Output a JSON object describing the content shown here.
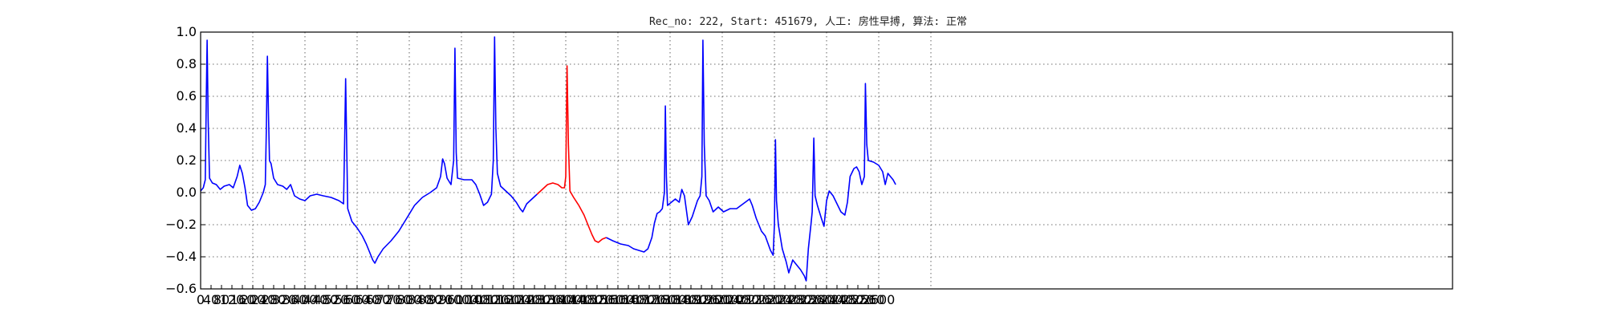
{
  "chart_data": {
    "type": "line",
    "title": "Rec_no: 222, Start: 451679, 人工: 房性早搏, 算法: 正常",
    "xlabel": "",
    "ylabel": "",
    "xlim": [
      0,
      2900
    ],
    "ylim": [
      -0.6,
      1.0
    ],
    "grid": true,
    "legend": "none",
    "xtick_labels": [
      "0",
      "40",
      "80",
      "120",
      "160",
      "200",
      "240",
      "280",
      "320",
      "360",
      "400",
      "440",
      "480",
      "520",
      "560",
      "600",
      "640",
      "680",
      "720",
      "760",
      "800",
      "840",
      "880",
      "920",
      "960",
      "1000",
      "1040",
      "1080",
      "1120",
      "1160",
      "1200",
      "1240",
      "1280",
      "1320",
      "1360",
      "1400",
      "1440",
      "1480",
      "1520",
      "1560",
      "1600",
      "1640",
      "1680",
      "1720",
      "1760",
      "1800",
      "1840",
      "1880",
      "1920",
      "1960",
      "2000",
      "2040",
      "2080",
      "2120",
      "2160",
      "2200",
      "2240",
      "2280",
      "2320",
      "2360",
      "2400",
      "2440",
      "2480",
      "2520",
      "2560",
      "2600"
    ],
    "ytick_labels": [
      "1.0",
      "0.8",
      "0.6",
      "0.4",
      "0.2",
      "0.0",
      "−0.2",
      "−0.4",
      "−0.6"
    ],
    "yticks": [
      1.0,
      0.8,
      0.6,
      0.4,
      0.2,
      0.0,
      -0.2,
      -0.4,
      -0.6
    ],
    "series": [
      {
        "color": "#0000ff",
        "segment": "before",
        "points": [
          [
            0,
            0.01
          ],
          [
            10,
            0.03
          ],
          [
            18,
            0.08
          ],
          [
            22,
            0.6
          ],
          [
            25,
            0.95
          ],
          [
            29,
            0.45
          ],
          [
            34,
            0.09
          ],
          [
            45,
            0.06
          ],
          [
            60,
            0.05
          ],
          [
            75,
            0.02
          ],
          [
            90,
            0.04
          ],
          [
            110,
            0.05
          ],
          [
            125,
            0.03
          ],
          [
            140,
            0.1
          ],
          [
            150,
            0.17
          ],
          [
            160,
            0.12
          ],
          [
            170,
            0.03
          ],
          [
            180,
            -0.08
          ],
          [
            195,
            -0.11
          ],
          [
            210,
            -0.1
          ],
          [
            225,
            -0.06
          ],
          [
            240,
            0.0
          ],
          [
            248,
            0.05
          ],
          [
            252,
            0.4
          ],
          [
            256,
            0.85
          ],
          [
            260,
            0.5
          ],
          [
            264,
            0.2
          ],
          [
            270,
            0.18
          ],
          [
            280,
            0.09
          ],
          [
            295,
            0.05
          ],
          [
            315,
            0.04
          ],
          [
            330,
            0.02
          ],
          [
            345,
            0.05
          ],
          [
            360,
            -0.02
          ],
          [
            380,
            -0.04
          ],
          [
            400,
            -0.05
          ],
          [
            420,
            -0.02
          ],
          [
            445,
            -0.01
          ],
          [
            470,
            -0.02
          ],
          [
            500,
            -0.03
          ],
          [
            530,
            -0.05
          ],
          [
            548,
            -0.07
          ],
          [
            552,
            0.3
          ],
          [
            556,
            0.71
          ],
          [
            560,
            0.3
          ],
          [
            564,
            -0.1
          ],
          [
            580,
            -0.18
          ],
          [
            600,
            -0.22
          ],
          [
            620,
            -0.27
          ],
          [
            635,
            -0.32
          ],
          [
            650,
            -0.38
          ],
          [
            660,
            -0.42
          ],
          [
            668,
            -0.44
          ],
          [
            680,
            -0.4
          ],
          [
            700,
            -0.35
          ],
          [
            730,
            -0.3
          ],
          [
            760,
            -0.24
          ],
          [
            790,
            -0.16
          ],
          [
            820,
            -0.08
          ],
          [
            850,
            -0.03
          ],
          [
            880,
            0.0
          ],
          [
            905,
            0.03
          ],
          [
            920,
            0.1
          ],
          [
            928,
            0.21
          ],
          [
            935,
            0.18
          ],
          [
            945,
            0.09
          ],
          [
            960,
            0.05
          ],
          [
            970,
            0.2
          ],
          [
            975,
            0.9
          ],
          [
            980,
            0.25
          ],
          [
            985,
            0.09
          ],
          [
            1010,
            0.08
          ],
          [
            1040,
            0.08
          ],
          [
            1055,
            0.05
          ],
          [
            1070,
            -0.01
          ],
          [
            1085,
            -0.08
          ],
          [
            1100,
            -0.06
          ],
          [
            1115,
            -0.01
          ],
          [
            1122,
            0.2
          ],
          [
            1127,
            0.97
          ],
          [
            1132,
            0.4
          ],
          [
            1138,
            0.12
          ],
          [
            1150,
            0.04
          ],
          [
            1170,
            0.01
          ],
          [
            1190,
            -0.02
          ],
          [
            1210,
            -0.06
          ],
          [
            1225,
            -0.1
          ],
          [
            1235,
            -0.12
          ],
          [
            1250,
            -0.07
          ],
          [
            1270,
            -0.04
          ],
          [
            1290,
            -0.01
          ]
        ]
      },
      {
        "color": "#ff0000",
        "segment": "event",
        "points": [
          [
            1290,
            -0.01
          ],
          [
            1310,
            0.02
          ],
          [
            1330,
            0.05
          ],
          [
            1350,
            0.06
          ],
          [
            1370,
            0.05
          ],
          [
            1385,
            0.03
          ],
          [
            1395,
            0.03
          ],
          [
            1400,
            0.1
          ],
          [
            1405,
            0.79
          ],
          [
            1410,
            0.3
          ],
          [
            1416,
            0.01
          ],
          [
            1430,
            -0.03
          ],
          [
            1450,
            -0.08
          ],
          [
            1470,
            -0.14
          ],
          [
            1485,
            -0.2
          ],
          [
            1500,
            -0.26
          ],
          [
            1512,
            -0.3
          ],
          [
            1525,
            -0.31
          ],
          [
            1540,
            -0.29
          ],
          [
            1555,
            -0.28
          ]
        ]
      },
      {
        "color": "#0000ff",
        "segment": "after",
        "points": [
          [
            1555,
            -0.28
          ],
          [
            1580,
            -0.3
          ],
          [
            1610,
            -0.32
          ],
          [
            1640,
            -0.33
          ],
          [
            1660,
            -0.35
          ],
          [
            1680,
            -0.36
          ],
          [
            1700,
            -0.37
          ],
          [
            1715,
            -0.35
          ],
          [
            1730,
            -0.28
          ],
          [
            1740,
            -0.19
          ],
          [
            1750,
            -0.13
          ],
          [
            1760,
            -0.12
          ],
          [
            1770,
            -0.1
          ],
          [
            1778,
            0.0
          ],
          [
            1782,
            0.54
          ],
          [
            1786,
            0.1
          ],
          [
            1790,
            -0.08
          ],
          [
            1805,
            -0.06
          ],
          [
            1820,
            -0.04
          ],
          [
            1835,
            -0.06
          ],
          [
            1845,
            0.02
          ],
          [
            1855,
            -0.02
          ],
          [
            1870,
            -0.2
          ],
          [
            1885,
            -0.15
          ],
          [
            1905,
            -0.05
          ],
          [
            1915,
            -0.02
          ],
          [
            1922,
            0.1
          ],
          [
            1926,
            0.95
          ],
          [
            1931,
            0.3
          ],
          [
            1938,
            -0.02
          ],
          [
            1950,
            -0.05
          ],
          [
            1965,
            -0.12
          ],
          [
            1985,
            -0.09
          ],
          [
            2005,
            -0.12
          ],
          [
            2030,
            -0.1
          ],
          [
            2055,
            -0.1
          ],
          [
            2080,
            -0.07
          ],
          [
            2105,
            -0.04
          ],
          [
            2115,
            -0.08
          ],
          [
            2130,
            -0.16
          ],
          [
            2150,
            -0.24
          ],
          [
            2165,
            -0.27
          ],
          [
            2185,
            -0.36
          ],
          [
            2195,
            -0.39
          ],
          [
            2200,
            -0.2
          ],
          [
            2204,
            0.33
          ],
          [
            2208,
            -0.05
          ],
          [
            2215,
            -0.2
          ],
          [
            2230,
            -0.35
          ],
          [
            2245,
            -0.43
          ],
          [
            2255,
            -0.5
          ],
          [
            2270,
            -0.42
          ],
          [
            2285,
            -0.45
          ],
          [
            2300,
            -0.48
          ],
          [
            2315,
            -0.52
          ],
          [
            2322,
            -0.55
          ],
          [
            2330,
            -0.35
          ],
          [
            2340,
            -0.2
          ],
          [
            2345,
            -0.12
          ],
          [
            2351,
            0.34
          ],
          [
            2356,
            -0.02
          ],
          [
            2365,
            -0.08
          ],
          [
            2380,
            -0.16
          ],
          [
            2390,
            -0.21
          ],
          [
            2400,
            -0.05
          ],
          [
            2410,
            0.01
          ],
          [
            2425,
            -0.02
          ],
          [
            2440,
            -0.07
          ],
          [
            2455,
            -0.12
          ],
          [
            2470,
            -0.14
          ],
          [
            2480,
            -0.06
          ],
          [
            2490,
            0.1
          ],
          [
            2505,
            0.15
          ],
          [
            2515,
            0.16
          ],
          [
            2525,
            0.13
          ],
          [
            2535,
            0.05
          ],
          [
            2545,
            0.1
          ],
          [
            2549,
            0.68
          ],
          [
            2554,
            0.3
          ],
          [
            2560,
            0.2
          ],
          [
            2580,
            0.19
          ],
          [
            2600,
            0.17
          ],
          [
            2615,
            0.13
          ],
          [
            2625,
            0.05
          ],
          [
            2635,
            0.12
          ],
          [
            2645,
            0.1
          ],
          [
            2655,
            0.08
          ],
          [
            2665,
            0.05
          ]
        ]
      }
    ]
  }
}
